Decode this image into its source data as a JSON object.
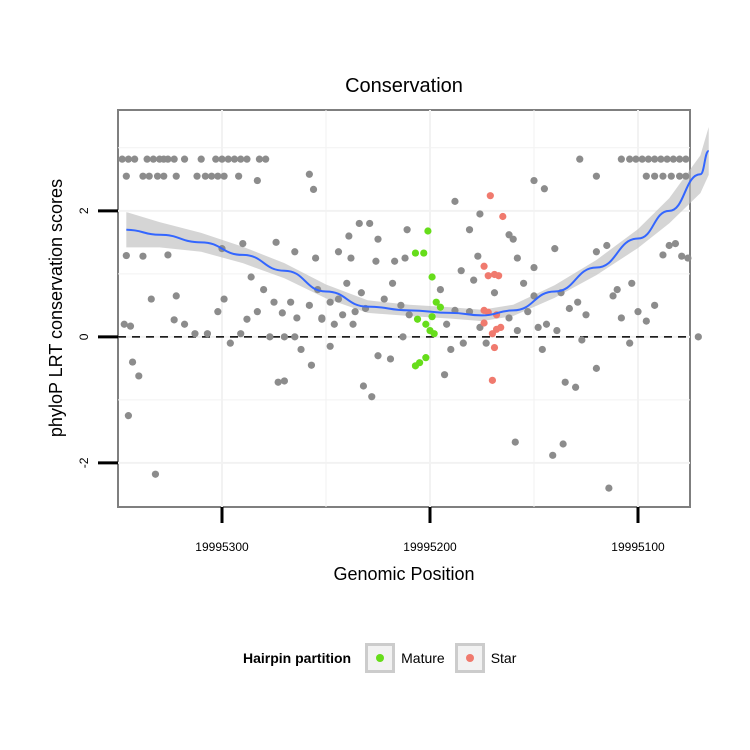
{
  "chart_data": {
    "type": "scatter",
    "title": "Conservation",
    "xlabel": "Genomic Position",
    "ylabel": "phyloP LRT conservation scores",
    "x_reversed": true,
    "xlim": [
      19995350,
      19995075
    ],
    "ylim": [
      -2.7,
      3.6
    ],
    "x_ticks": [
      19995300,
      19995200,
      19995100
    ],
    "x_tick_labels": [
      "19995300",
      "19995200",
      "19995100"
    ],
    "y_ticks": [
      -2,
      0,
      2
    ],
    "y_tick_labels": [
      "-2",
      "0",
      "2"
    ],
    "grid": true,
    "reference_line": {
      "y": 0,
      "style": "dashed"
    },
    "legend": {
      "title": "Hairpin partition",
      "position": "bottom",
      "entries": [
        {
          "label": "Mature",
          "color": "#66dd1a"
        },
        {
          "label": "Star",
          "color": "#f07a6e"
        }
      ]
    },
    "colors": {
      "other": "#8c8c8c",
      "mature": "#66dd1a",
      "star": "#f07a6e",
      "smooth": "#3366ff",
      "band": "#bebebe"
    },
    "series": [
      {
        "name": "Mature",
        "points": [
          [
            19995207,
            1.33
          ],
          [
            19995203,
            1.33
          ],
          [
            19995201,
            1.68
          ],
          [
            19995199,
            0.95
          ],
          [
            19995197,
            0.55
          ],
          [
            19995195,
            0.47
          ],
          [
            19995206,
            0.28
          ],
          [
            19995202,
            0.2
          ],
          [
            19995199,
            0.32
          ],
          [
            19995198,
            0.05
          ],
          [
            19995200,
            0.1
          ],
          [
            19995202,
            -0.33
          ],
          [
            19995207,
            -0.46
          ],
          [
            19995205,
            -0.41
          ]
        ]
      },
      {
        "name": "Star",
        "points": [
          [
            19995171,
            2.24
          ],
          [
            19995165,
            1.91
          ],
          [
            19995174,
            1.12
          ],
          [
            19995172,
            0.97
          ],
          [
            19995169,
            0.99
          ],
          [
            19995167,
            0.97
          ],
          [
            19995174,
            0.42
          ],
          [
            19995172,
            0.39
          ],
          [
            19995168,
            0.35
          ],
          [
            19995166,
            0.15
          ],
          [
            19995170,
            0.05
          ],
          [
            19995174,
            0.22
          ],
          [
            19995168,
            0.12
          ],
          [
            19995169,
            -0.17
          ],
          [
            19995170,
            -0.69
          ]
        ]
      },
      {
        "name": "",
        "points": [
          [
            19995348,
            2.82
          ],
          [
            19995345,
            2.82
          ],
          [
            19995342,
            2.82
          ],
          [
            19995336,
            2.82
          ],
          [
            19995333,
            2.82
          ],
          [
            19995330,
            2.82
          ],
          [
            19995328,
            2.82
          ],
          [
            19995326,
            2.82
          ],
          [
            19995323,
            2.82
          ],
          [
            19995318,
            2.82
          ],
          [
            19995310,
            2.82
          ],
          [
            19995303,
            2.82
          ],
          [
            19995300,
            2.82
          ],
          [
            19995297,
            2.82
          ],
          [
            19995294,
            2.82
          ],
          [
            19995291,
            2.82
          ],
          [
            19995288,
            2.82
          ],
          [
            19995282,
            2.82
          ],
          [
            19995279,
            2.82
          ],
          [
            19995346,
            2.55
          ],
          [
            19995338,
            2.55
          ],
          [
            19995335,
            2.55
          ],
          [
            19995331,
            2.55
          ],
          [
            19995328,
            2.55
          ],
          [
            19995322,
            2.55
          ],
          [
            19995312,
            2.55
          ],
          [
            19995308,
            2.55
          ],
          [
            19995305,
            2.55
          ],
          [
            19995302,
            2.55
          ],
          [
            19995299,
            2.55
          ],
          [
            19995292,
            2.55
          ],
          [
            19995283,
            2.48
          ],
          [
            19995258,
            2.58
          ],
          [
            19995256,
            2.34
          ],
          [
            19995128,
            2.82
          ],
          [
            19995108,
            2.82
          ],
          [
            19995104,
            2.82
          ],
          [
            19995101,
            2.82
          ],
          [
            19995098,
            2.82
          ],
          [
            19995095,
            2.82
          ],
          [
            19995092,
            2.82
          ],
          [
            19995089,
            2.82
          ],
          [
            19995086,
            2.82
          ],
          [
            19995083,
            2.82
          ],
          [
            19995080,
            2.82
          ],
          [
            19995077,
            2.82
          ],
          [
            19995120,
            2.55
          ],
          [
            19995096,
            2.55
          ],
          [
            19995092,
            2.55
          ],
          [
            19995088,
            2.55
          ],
          [
            19995084,
            2.55
          ],
          [
            19995080,
            2.55
          ],
          [
            19995077,
            2.55
          ],
          [
            19995145,
            2.35
          ],
          [
            19995150,
            2.48
          ],
          [
            19995160,
            1.55
          ],
          [
            19995176,
            1.95
          ],
          [
            19995188,
            2.15
          ],
          [
            19995211,
            1.7
          ],
          [
            19995234,
            1.8
          ],
          [
            19995239,
            1.6
          ],
          [
            19995244,
            1.35
          ],
          [
            19995255,
            1.25
          ],
          [
            19995265,
            1.35
          ],
          [
            19995274,
            1.5
          ],
          [
            19995290,
            1.48
          ],
          [
            19995300,
            1.4
          ],
          [
            19995326,
            1.3
          ],
          [
            19995338,
            1.28
          ],
          [
            19995346,
            1.29
          ],
          [
            19995322,
            0.65
          ],
          [
            19995334,
            0.6
          ],
          [
            19995344,
            0.17
          ],
          [
            19995347,
            0.2
          ],
          [
            19995343,
            -0.4
          ],
          [
            19995340,
            -0.62
          ],
          [
            19995345,
            -1.25
          ],
          [
            19995332,
            -2.18
          ],
          [
            19995318,
            0.2
          ],
          [
            19995307,
            0.05
          ],
          [
            19995291,
            0.05
          ],
          [
            19995277,
            0.0
          ],
          [
            19995288,
            0.28
          ],
          [
            19995299,
            0.6
          ],
          [
            19995302,
            0.4
          ],
          [
            19995286,
            0.95
          ],
          [
            19995280,
            0.75
          ],
          [
            19995275,
            0.55
          ],
          [
            19995271,
            0.38
          ],
          [
            19995265,
            0.0
          ],
          [
            19995262,
            -0.2
          ],
          [
            19995258,
            0.5
          ],
          [
            19995254,
            0.75
          ],
          [
            19995252,
            0.28
          ],
          [
            19995248,
            0.55
          ],
          [
            19995244,
            0.6
          ],
          [
            19995240,
            0.85
          ],
          [
            19995238,
            1.25
          ],
          [
            19995236,
            0.4
          ],
          [
            19995233,
            0.7
          ],
          [
            19995229,
            1.8
          ],
          [
            19995226,
            1.2
          ],
          [
            19995222,
            0.6
          ],
          [
            19995218,
            0.85
          ],
          [
            19995214,
            0.5
          ],
          [
            19995210,
            0.35
          ],
          [
            19995213,
            0.0
          ],
          [
            19995219,
            -0.35
          ],
          [
            19995225,
            -0.3
          ],
          [
            19995232,
            -0.78
          ],
          [
            19995228,
            -0.95
          ],
          [
            19995248,
            -0.15
          ],
          [
            19995257,
            -0.45
          ],
          [
            19995270,
            -0.7
          ],
          [
            19995273,
            -0.72
          ],
          [
            19995195,
            0.75
          ],
          [
            19995192,
            0.2
          ],
          [
            19995188,
            0.42
          ],
          [
            19995185,
            1.05
          ],
          [
            19995181,
            0.4
          ],
          [
            19995179,
            0.9
          ],
          [
            19995176,
            0.15
          ],
          [
            19995173,
            -0.1
          ],
          [
            19995162,
            1.62
          ],
          [
            19995158,
            1.25
          ],
          [
            19995155,
            0.85
          ],
          [
            19995153,
            0.4
          ],
          [
            19995150,
            0.65
          ],
          [
            19995148,
            0.15
          ],
          [
            19995146,
            -0.2
          ],
          [
            19995159,
            -1.67
          ],
          [
            19995141,
            -1.88
          ],
          [
            19995136,
            -1.7
          ],
          [
            19995135,
            -0.72
          ],
          [
            19995130,
            -0.8
          ],
          [
            19995129,
            0.55
          ],
          [
            19995125,
            0.35
          ],
          [
            19995120,
            1.35
          ],
          [
            19995112,
            0.65
          ],
          [
            19995108,
            0.3
          ],
          [
            19995104,
            -0.1
          ],
          [
            19995100,
            0.4
          ],
          [
            19995096,
            0.25
          ],
          [
            19995092,
            0.5
          ],
          [
            19995088,
            1.3
          ],
          [
            19995085,
            1.45
          ],
          [
            19995082,
            1.48
          ],
          [
            19995079,
            1.28
          ],
          [
            19995076,
            1.25
          ],
          [
            19995071,
            0.0
          ],
          [
            19995184,
            -0.1
          ],
          [
            19995190,
            -0.2
          ],
          [
            19995193,
            -0.6
          ],
          [
            19995169,
            0.7
          ],
          [
            19995140,
            1.4
          ],
          [
            19995137,
            0.7
          ],
          [
            19995133,
            0.45
          ],
          [
            19995127,
            -0.05
          ],
          [
            19995115,
            1.45
          ],
          [
            19995110,
            0.75
          ],
          [
            19995103,
            0.85
          ],
          [
            19995120,
            -0.5
          ],
          [
            19995114,
            -2.4
          ],
          [
            19995212,
            1.25
          ],
          [
            19995217,
            1.2
          ],
          [
            19995225,
            1.55
          ],
          [
            19995231,
            0.45
          ],
          [
            19995246,
            0.2
          ],
          [
            19995252,
            0.3
          ],
          [
            19995264,
            0.3
          ],
          [
            19995267,
            0.55
          ],
          [
            19995283,
            0.4
          ],
          [
            19995296,
            -0.1
          ],
          [
            19995313,
            0.05
          ],
          [
            19995323,
            0.27
          ],
          [
            19995144,
            0.2
          ],
          [
            19995139,
            0.1
          ],
          [
            19995150,
            1.1
          ],
          [
            19995181,
            1.7
          ],
          [
            19995177,
            1.28
          ],
          [
            19995158,
            0.1
          ],
          [
            19995162,
            0.3
          ],
          [
            19995237,
            0.2
          ],
          [
            19995242,
            0.35
          ],
          [
            19995270,
            0.0
          ]
        ]
      }
    ],
    "smooth_curve": {
      "x": [
        19995346,
        19995330,
        19995310,
        19995290,
        19995270,
        19995250,
        19995230,
        19995210,
        19995190,
        19995175,
        19995160,
        19995140,
        19995120,
        19995100,
        19995085,
        19995070,
        19995066
      ],
      "y": [
        1.7,
        1.62,
        1.5,
        1.3,
        1.05,
        0.72,
        0.48,
        0.42,
        0.38,
        0.34,
        0.42,
        0.72,
        1.1,
        1.56,
        2.0,
        2.58,
        2.95
      ],
      "band": [
        0.28,
        0.2,
        0.15,
        0.13,
        0.12,
        0.11,
        0.1,
        0.09,
        0.09,
        0.09,
        0.09,
        0.1,
        0.12,
        0.15,
        0.2,
        0.3,
        0.38
      ]
    }
  }
}
